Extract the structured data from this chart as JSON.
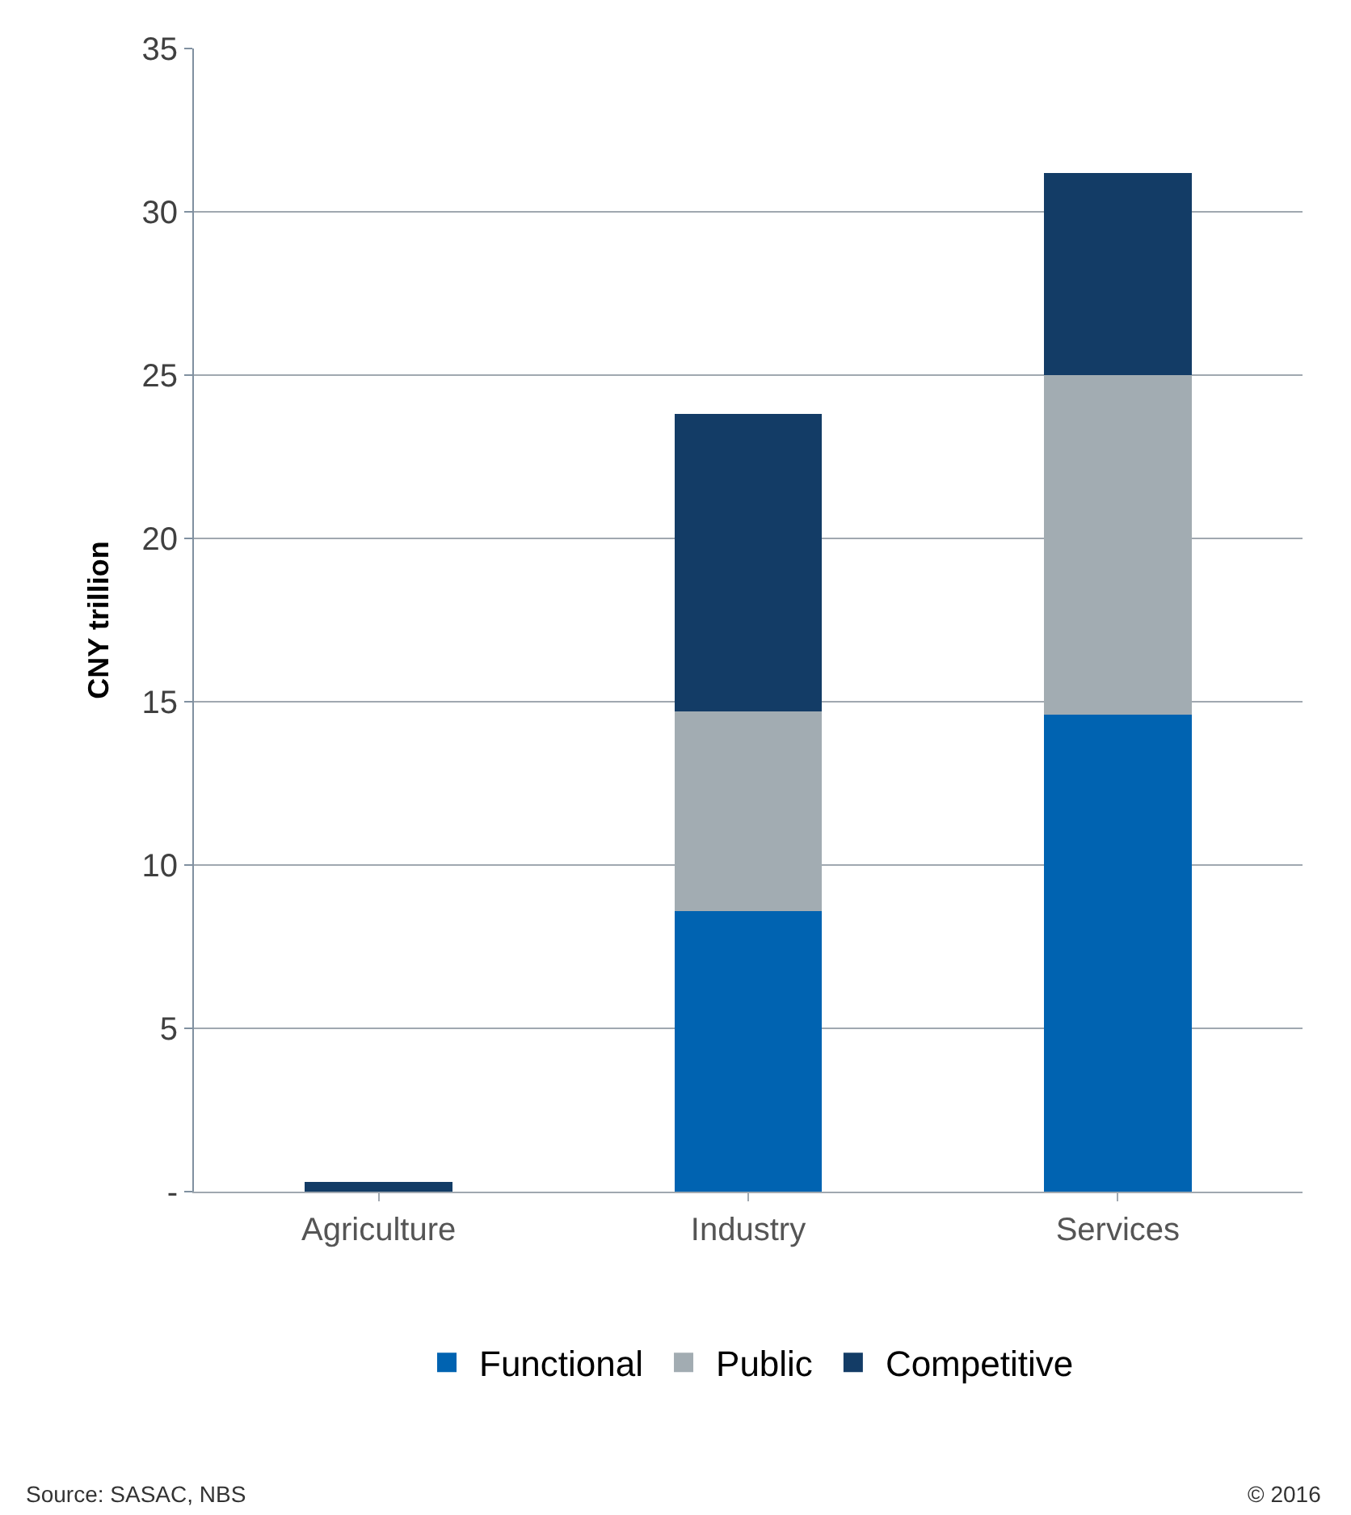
{
  "chart_data": {
    "type": "bar",
    "stacked": true,
    "ylabel": "CNY trillion",
    "categories": [
      "Agriculture",
      "Industry",
      "Services"
    ],
    "series": [
      {
        "name": "Functional",
        "color": "#0063b1",
        "values": [
          0,
          8.6,
          14.6
        ]
      },
      {
        "name": "Public",
        "color": "#a2acb2",
        "values": [
          0,
          6.1,
          10.4
        ]
      },
      {
        "name": "Competitive",
        "color": "#133c66",
        "values": [
          0.3,
          9.1,
          6.2
        ]
      }
    ],
    "ylim": [
      0,
      35
    ],
    "yticks": [
      {
        "value": 0,
        "label": "-"
      },
      5,
      10,
      15,
      20,
      25,
      30,
      35
    ],
    "grid": "y",
    "legend": "bottom",
    "annotations": [
      "Source: SASAC, NBS",
      "© 2016"
    ]
  }
}
